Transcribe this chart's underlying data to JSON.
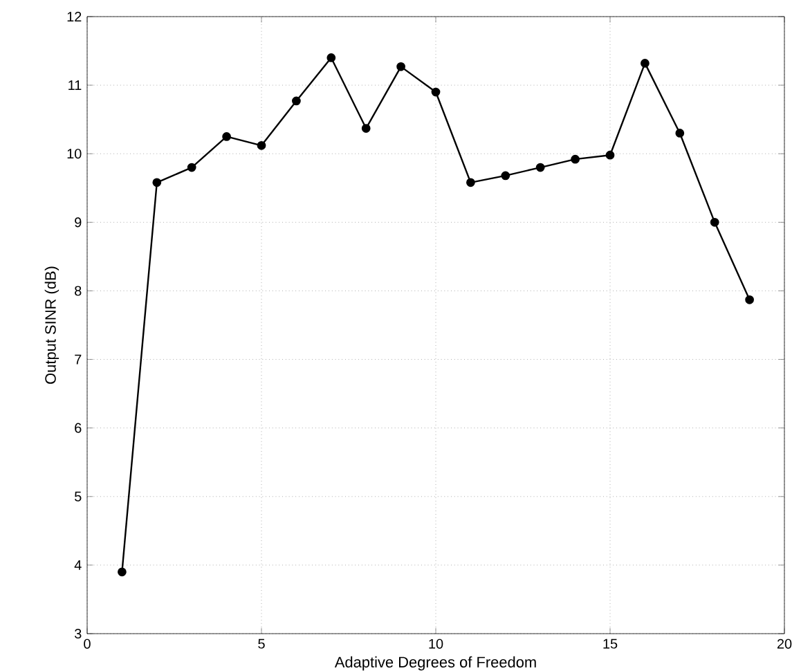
{
  "chart_data": {
    "type": "line",
    "xlabel": "Adaptive Degrees of Freedom",
    "ylabel": "Output SINR (dB)",
    "x": [
      1,
      2,
      3,
      4,
      5,
      6,
      7,
      8,
      9,
      10,
      11,
      12,
      13,
      14,
      15,
      16,
      17,
      18,
      19
    ],
    "series": [
      {
        "color": "#000000",
        "values": [
          3.9,
          9.58,
          9.8,
          10.25,
          10.12,
          10.77,
          11.4,
          10.37,
          11.27,
          10.9,
          9.58,
          9.68,
          9.8,
          9.92,
          9.98,
          11.32,
          10.3,
          9.0,
          7.87
        ]
      }
    ],
    "xlim": [
      0,
      20
    ],
    "xticks": [
      0,
      5,
      10,
      15,
      20
    ],
    "ylim": [
      3,
      12
    ],
    "yticks": [
      3,
      4,
      5,
      6,
      7,
      8,
      9,
      10,
      11,
      12
    ],
    "grid": true,
    "marker": "circle",
    "line_style": "solid"
  }
}
